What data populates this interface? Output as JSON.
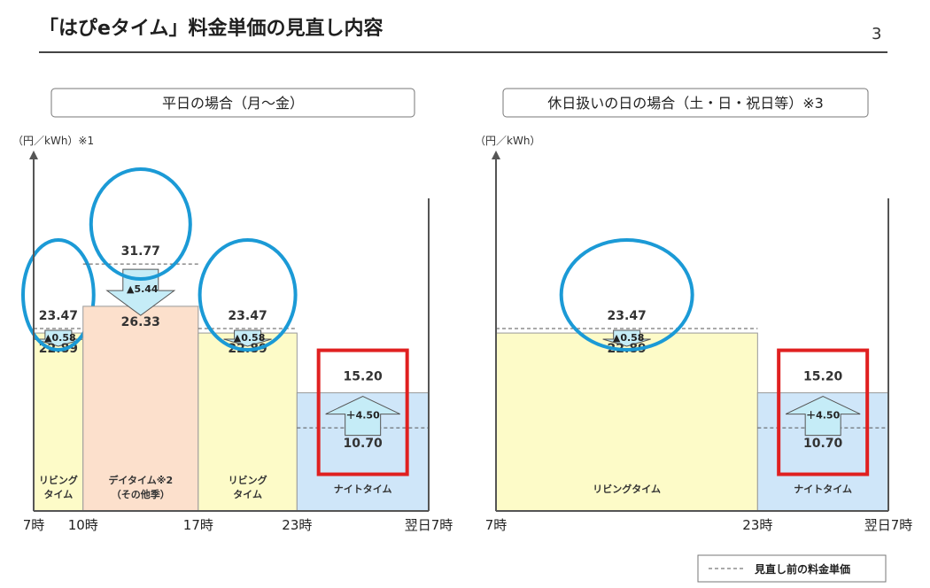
{
  "header": {
    "title": "「はぴeタイム」料金単価の見直し内容",
    "page_number": "3"
  },
  "legend": {
    "label": "見直し前の料金単価"
  },
  "chart_data": [
    {
      "type": "bar",
      "panel_title": "平日の場合（月～金）",
      "ylabel": "（円／kWh）※1",
      "x_ticks": [
        "7時",
        "10時",
        "17時",
        "23時",
        "翌日7時"
      ],
      "ylim": [
        0,
        45
      ],
      "series": [
        {
          "name": "リビングタイム",
          "x_start": 7,
          "x_end": 10,
          "value": 22.89,
          "old_value": 23.47,
          "change": "▲0.58",
          "direction": "down",
          "color": "#fdfbc8",
          "circled": true
        },
        {
          "name": "デイタイム※2（その他季）",
          "x_start": 10,
          "x_end": 17,
          "value": 26.33,
          "old_value": 31.77,
          "change": "▲5.44",
          "direction": "down",
          "color": "#fce0cc",
          "circled": true
        },
        {
          "name": "リビングタイム",
          "x_start": 17,
          "x_end": 23,
          "value": 22.89,
          "old_value": 23.47,
          "change": "▲0.58",
          "direction": "down",
          "color": "#fdfbc8",
          "circled": true
        },
        {
          "name": "ナイトタイム",
          "x_start": 23,
          "x_end": 31,
          "value": 15.2,
          "old_value": 10.7,
          "change": "＋4.50",
          "direction": "up",
          "color": "#cfe6f9",
          "boxed": true
        }
      ],
      "bar_labels": [
        [
          "リビング",
          "タイム"
        ],
        [
          "デイタイム※2",
          "（その他季）"
        ],
        [
          "リビング",
          "タイム"
        ],
        [
          "ナイトタイム"
        ]
      ]
    },
    {
      "type": "bar",
      "panel_title": "休日扱いの日の場合（土・日・祝日等）※3",
      "ylabel": "（円／kWh）",
      "x_ticks": [
        "7時",
        "23時",
        "翌日7時"
      ],
      "ylim": [
        0,
        45
      ],
      "series": [
        {
          "name": "リビングタイム",
          "x_start": 7,
          "x_end": 23,
          "value": 22.89,
          "old_value": 23.47,
          "change": "▲0.58",
          "direction": "down",
          "color": "#fdfbc8",
          "circled": true
        },
        {
          "name": "ナイトタイム",
          "x_start": 23,
          "x_end": 31,
          "value": 15.2,
          "old_value": 10.7,
          "change": "＋4.50",
          "direction": "up",
          "color": "#cfe6f9",
          "boxed": true
        }
      ],
      "bar_labels": [
        [
          "リビングタイム"
        ],
        [
          "ナイトタイム"
        ]
      ]
    }
  ]
}
